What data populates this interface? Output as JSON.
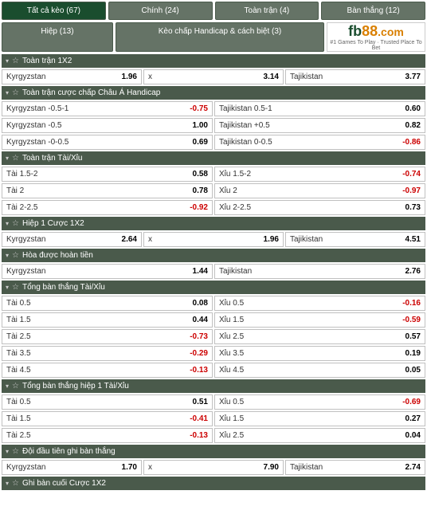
{
  "tabs_row1": [
    {
      "label": "Tất cả kèo (67)",
      "active": true
    },
    {
      "label": "Chính (24)",
      "active": false
    },
    {
      "label": "Toàn trận (4)",
      "active": false
    },
    {
      "label": "Bàn thắng (12)",
      "active": false
    }
  ],
  "tabs_row2": [
    {
      "label": "Hiệp (13)",
      "active": false
    },
    {
      "label": "Kèo chấp Handicap & cách biệt (3)",
      "active": false,
      "wide": true
    }
  ],
  "logo": {
    "fb": "fb",
    "eight": "88",
    "com": ".com",
    "sub": "#1 Games To Play · Trusted Place To Bet"
  },
  "sections": [
    {
      "title": "Toàn trận 1X2",
      "cols": 3,
      "rows": [
        [
          {
            "label": "Kyrgyzstan",
            "odd": "1.96",
            "neg": false
          },
          {
            "label": "x",
            "odd": "3.14",
            "neg": false
          },
          {
            "label": "Tajikistan",
            "odd": "3.77",
            "neg": false
          }
        ]
      ]
    },
    {
      "title": "Toàn trận cược chấp Châu Á Handicap",
      "cols": 2,
      "rows": [
        [
          {
            "label": "Kyrgyzstan -0.5-1",
            "odd": "-0.75",
            "neg": true
          },
          {
            "label": "Tajikistan 0.5-1",
            "odd": "0.60",
            "neg": false
          }
        ],
        [
          {
            "label": "Kyrgyzstan -0.5",
            "odd": "1.00",
            "neg": false
          },
          {
            "label": "Tajikistan +0.5",
            "odd": "0.82",
            "neg": false
          }
        ],
        [
          {
            "label": "Kyrgyzstan -0-0.5",
            "odd": "0.69",
            "neg": false
          },
          {
            "label": "Tajikistan 0-0.5",
            "odd": "-0.86",
            "neg": true
          }
        ]
      ]
    },
    {
      "title": "Toàn trận Tài/Xỉu",
      "cols": 2,
      "rows": [
        [
          {
            "label": "Tài 1.5-2",
            "odd": "0.58",
            "neg": false
          },
          {
            "label": "Xỉu 1.5-2",
            "odd": "-0.74",
            "neg": true
          }
        ],
        [
          {
            "label": "Tài 2",
            "odd": "0.78",
            "neg": false
          },
          {
            "label": "Xỉu 2",
            "odd": "-0.97",
            "neg": true
          }
        ],
        [
          {
            "label": "Tài 2-2.5",
            "odd": "-0.92",
            "neg": true
          },
          {
            "label": "Xỉu 2-2.5",
            "odd": "0.73",
            "neg": false
          }
        ]
      ]
    },
    {
      "title": "Hiệp 1 Cược 1X2",
      "cols": 3,
      "rows": [
        [
          {
            "label": "Kyrgyzstan",
            "odd": "2.64",
            "neg": false
          },
          {
            "label": "x",
            "odd": "1.96",
            "neg": false
          },
          {
            "label": "Tajikistan",
            "odd": "4.51",
            "neg": false
          }
        ]
      ]
    },
    {
      "title": "Hòa được hoàn tiền",
      "cols": 2,
      "rows": [
        [
          {
            "label": "Kyrgyzstan",
            "odd": "1.44",
            "neg": false
          },
          {
            "label": "Tajikistan",
            "odd": "2.76",
            "neg": false
          }
        ]
      ]
    },
    {
      "title": "Tổng bàn thắng Tài/Xỉu",
      "cols": 2,
      "rows": [
        [
          {
            "label": "Tài 0.5",
            "odd": "0.08",
            "neg": false
          },
          {
            "label": "Xỉu 0.5",
            "odd": "-0.16",
            "neg": true
          }
        ],
        [
          {
            "label": "Tài 1.5",
            "odd": "0.44",
            "neg": false
          },
          {
            "label": "Xỉu 1.5",
            "odd": "-0.59",
            "neg": true
          }
        ],
        [
          {
            "label": "Tài 2.5",
            "odd": "-0.73",
            "neg": true
          },
          {
            "label": "Xỉu 2.5",
            "odd": "0.57",
            "neg": false
          }
        ],
        [
          {
            "label": "Tài 3.5",
            "odd": "-0.29",
            "neg": true
          },
          {
            "label": "Xỉu 3.5",
            "odd": "0.19",
            "neg": false
          }
        ],
        [
          {
            "label": "Tài 4.5",
            "odd": "-0.13",
            "neg": true
          },
          {
            "label": "Xỉu 4.5",
            "odd": "0.05",
            "neg": false
          }
        ]
      ]
    },
    {
      "title": "Tổng bàn thắng hiệp 1 Tài/Xỉu",
      "cols": 2,
      "rows": [
        [
          {
            "label": "Tài 0.5",
            "odd": "0.51",
            "neg": false
          },
          {
            "label": "Xỉu 0.5",
            "odd": "-0.69",
            "neg": true
          }
        ],
        [
          {
            "label": "Tài 1.5",
            "odd": "-0.41",
            "neg": true
          },
          {
            "label": "Xỉu 1.5",
            "odd": "0.27",
            "neg": false
          }
        ],
        [
          {
            "label": "Tài 2.5",
            "odd": "-0.13",
            "neg": true
          },
          {
            "label": "Xỉu 2.5",
            "odd": "0.04",
            "neg": false
          }
        ]
      ]
    },
    {
      "title": "Đội đầu tiên ghi bàn thắng",
      "cols": 3,
      "rows": [
        [
          {
            "label": "Kyrgyzstan",
            "odd": "1.70",
            "neg": false
          },
          {
            "label": "x",
            "odd": "7.90",
            "neg": false
          },
          {
            "label": "Tajikistan",
            "odd": "2.74",
            "neg": false
          }
        ]
      ]
    },
    {
      "title": "Ghi bàn cuối Cược 1X2",
      "cols": 3,
      "rows": []
    }
  ]
}
